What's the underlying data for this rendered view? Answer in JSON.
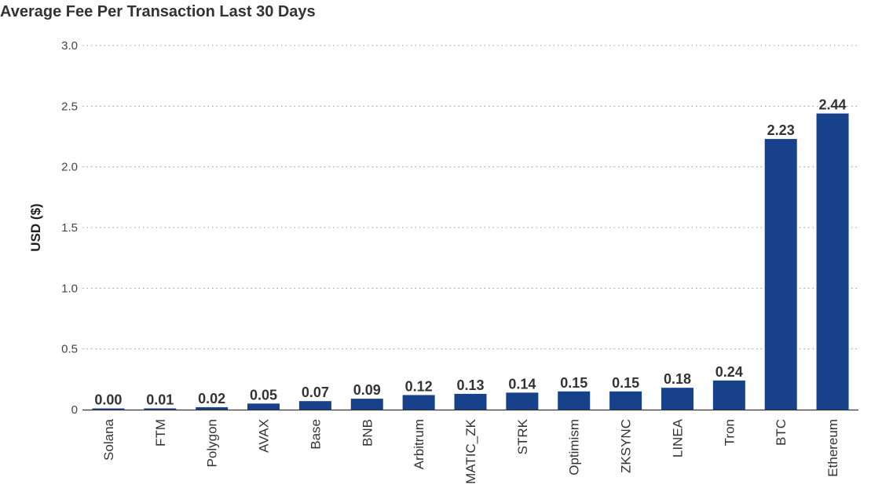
{
  "chart_data": {
    "type": "bar",
    "title": "Average Fee Per Transaction Last 30 Days",
    "xlabel": "",
    "ylabel": "USD ($)",
    "ylim": [
      0,
      3.0
    ],
    "yticks": [
      "0",
      "0.5",
      "1.0",
      "1.5",
      "2.0",
      "2.5",
      "3.0"
    ],
    "ytick_values": [
      0,
      0.5,
      1.0,
      1.5,
      2.0,
      2.5,
      3.0
    ],
    "grid": true,
    "legend": "none",
    "bar_color": "#17418a",
    "categories": [
      "Solana",
      "FTM",
      "Polygon",
      "AVAX",
      "Base",
      "BNB",
      "Arbitrum",
      "MATIC_ZK",
      "STRK",
      "Optimism",
      "ZKSYNC",
      "LINEA",
      "Tron",
      "BTC",
      "Ethereum"
    ],
    "values": [
      0.0,
      0.01,
      0.02,
      0.05,
      0.07,
      0.09,
      0.12,
      0.13,
      0.14,
      0.15,
      0.15,
      0.18,
      0.24,
      2.23,
      2.44
    ],
    "data_labels": [
      "0.00",
      "0.01",
      "0.02",
      "0.05",
      "0.07",
      "0.09",
      "0.12",
      "0.13",
      "0.14",
      "0.15",
      "0.15",
      "0.18",
      "0.24",
      "2.23",
      "2.44"
    ]
  }
}
